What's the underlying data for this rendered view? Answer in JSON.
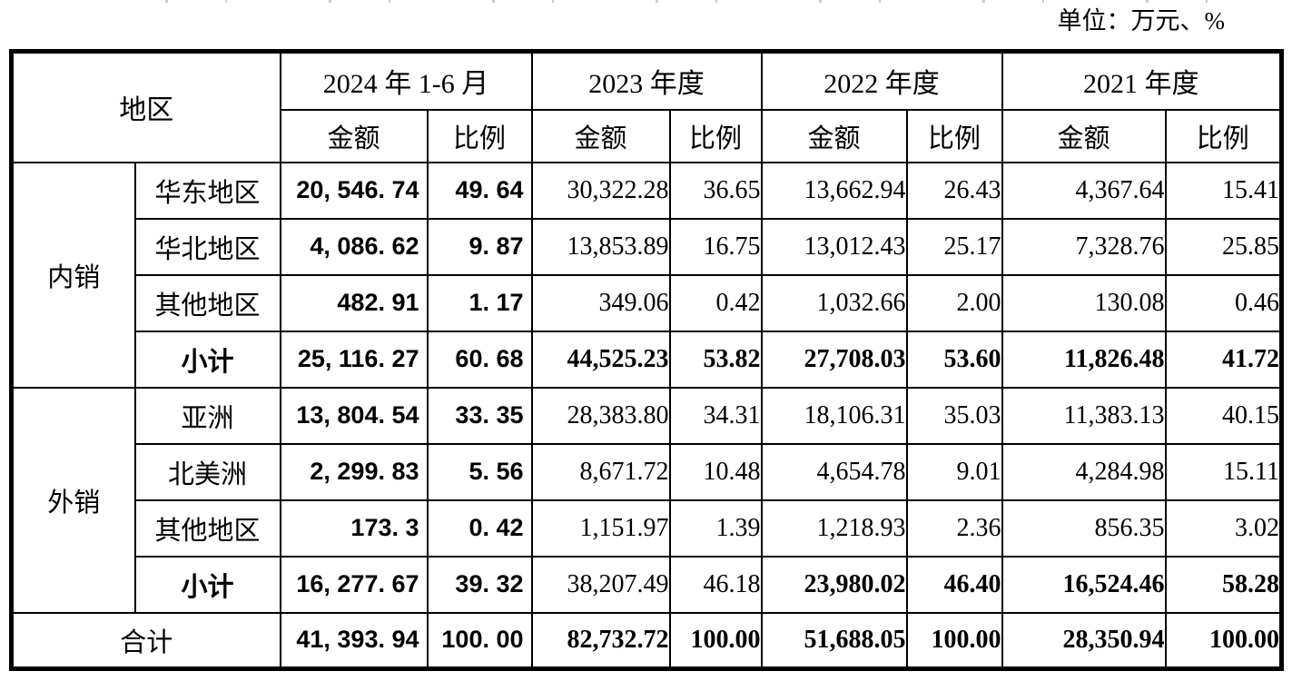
{
  "page": {
    "unit_label": "单位：万元、%"
  },
  "table": {
    "corner_label": "地区",
    "col_headers": {
      "amount": "金额",
      "ratio": "比例"
    },
    "periods": [
      "2024 年 1-6 月",
      "2023 年度",
      "2022 年度",
      "2021 年度"
    ],
    "groups": [
      {
        "label": "内销",
        "rows": [
          {
            "region": "华东地区",
            "region_bold": false,
            "bold_cols": [],
            "values": [
              "20, 546. 74",
              "49. 64",
              "30,322.28",
              "36.65",
              "13,662.94",
              "26.43",
              "4,367.64",
              "15.41"
            ]
          },
          {
            "region": "华北地区",
            "region_bold": false,
            "bold_cols": [],
            "values": [
              "4, 086. 62",
              "9. 87",
              "13,853.89",
              "16.75",
              "13,012.43",
              "25.17",
              "7,328.76",
              "25.85"
            ]
          },
          {
            "region": "其他地区",
            "region_bold": false,
            "bold_cols": [],
            "values": [
              "482. 91",
              "1. 17",
              "349.06",
              "0.42",
              "1,032.66",
              "2.00",
              "130.08",
              "0.46"
            ]
          },
          {
            "region": "小计",
            "region_bold": true,
            "bold_cols": [
              2,
              3,
              4,
              5,
              6,
              7
            ],
            "values": [
              "25, 116. 27",
              "60. 68",
              "44,525.23",
              "53.82",
              "27,708.03",
              "53.60",
              "11,826.48",
              "41.72"
            ]
          }
        ]
      },
      {
        "label": "外销",
        "rows": [
          {
            "region": "亚洲",
            "region_bold": false,
            "bold_cols": [],
            "values": [
              "13, 804. 54",
              "33. 35",
              "28,383.80",
              "34.31",
              "18,106.31",
              "35.03",
              "11,383.13",
              "40.15"
            ]
          },
          {
            "region": "北美洲",
            "region_bold": false,
            "bold_cols": [],
            "values": [
              "2, 299. 83",
              "5. 56",
              "8,671.72",
              "10.48",
              "4,654.78",
              "9.01",
              "4,284.98",
              "15.11"
            ]
          },
          {
            "region": "其他地区",
            "region_bold": false,
            "bold_cols": [],
            "values": [
              "173. 3",
              "0. 42",
              "1,151.97",
              "1.39",
              "1,218.93",
              "2.36",
              "856.35",
              "3.02"
            ]
          },
          {
            "region": "小计",
            "region_bold": true,
            "bold_cols": [
              4,
              5,
              6,
              7
            ],
            "values": [
              "16, 277. 67",
              "39. 32",
              "38,207.49",
              "46.18",
              "23,980.02",
              "46.40",
              "16,524.46",
              "58.28"
            ]
          }
        ]
      }
    ],
    "total": {
      "label": "合计",
      "bold_cols": [
        2,
        3,
        4,
        5,
        6,
        7
      ],
      "values": [
        "41, 393. 94",
        "100. 00",
        "82,732.72",
        "100.00",
        "51,688.05",
        "100.00",
        "28,350.94",
        "100.00"
      ]
    }
  }
}
